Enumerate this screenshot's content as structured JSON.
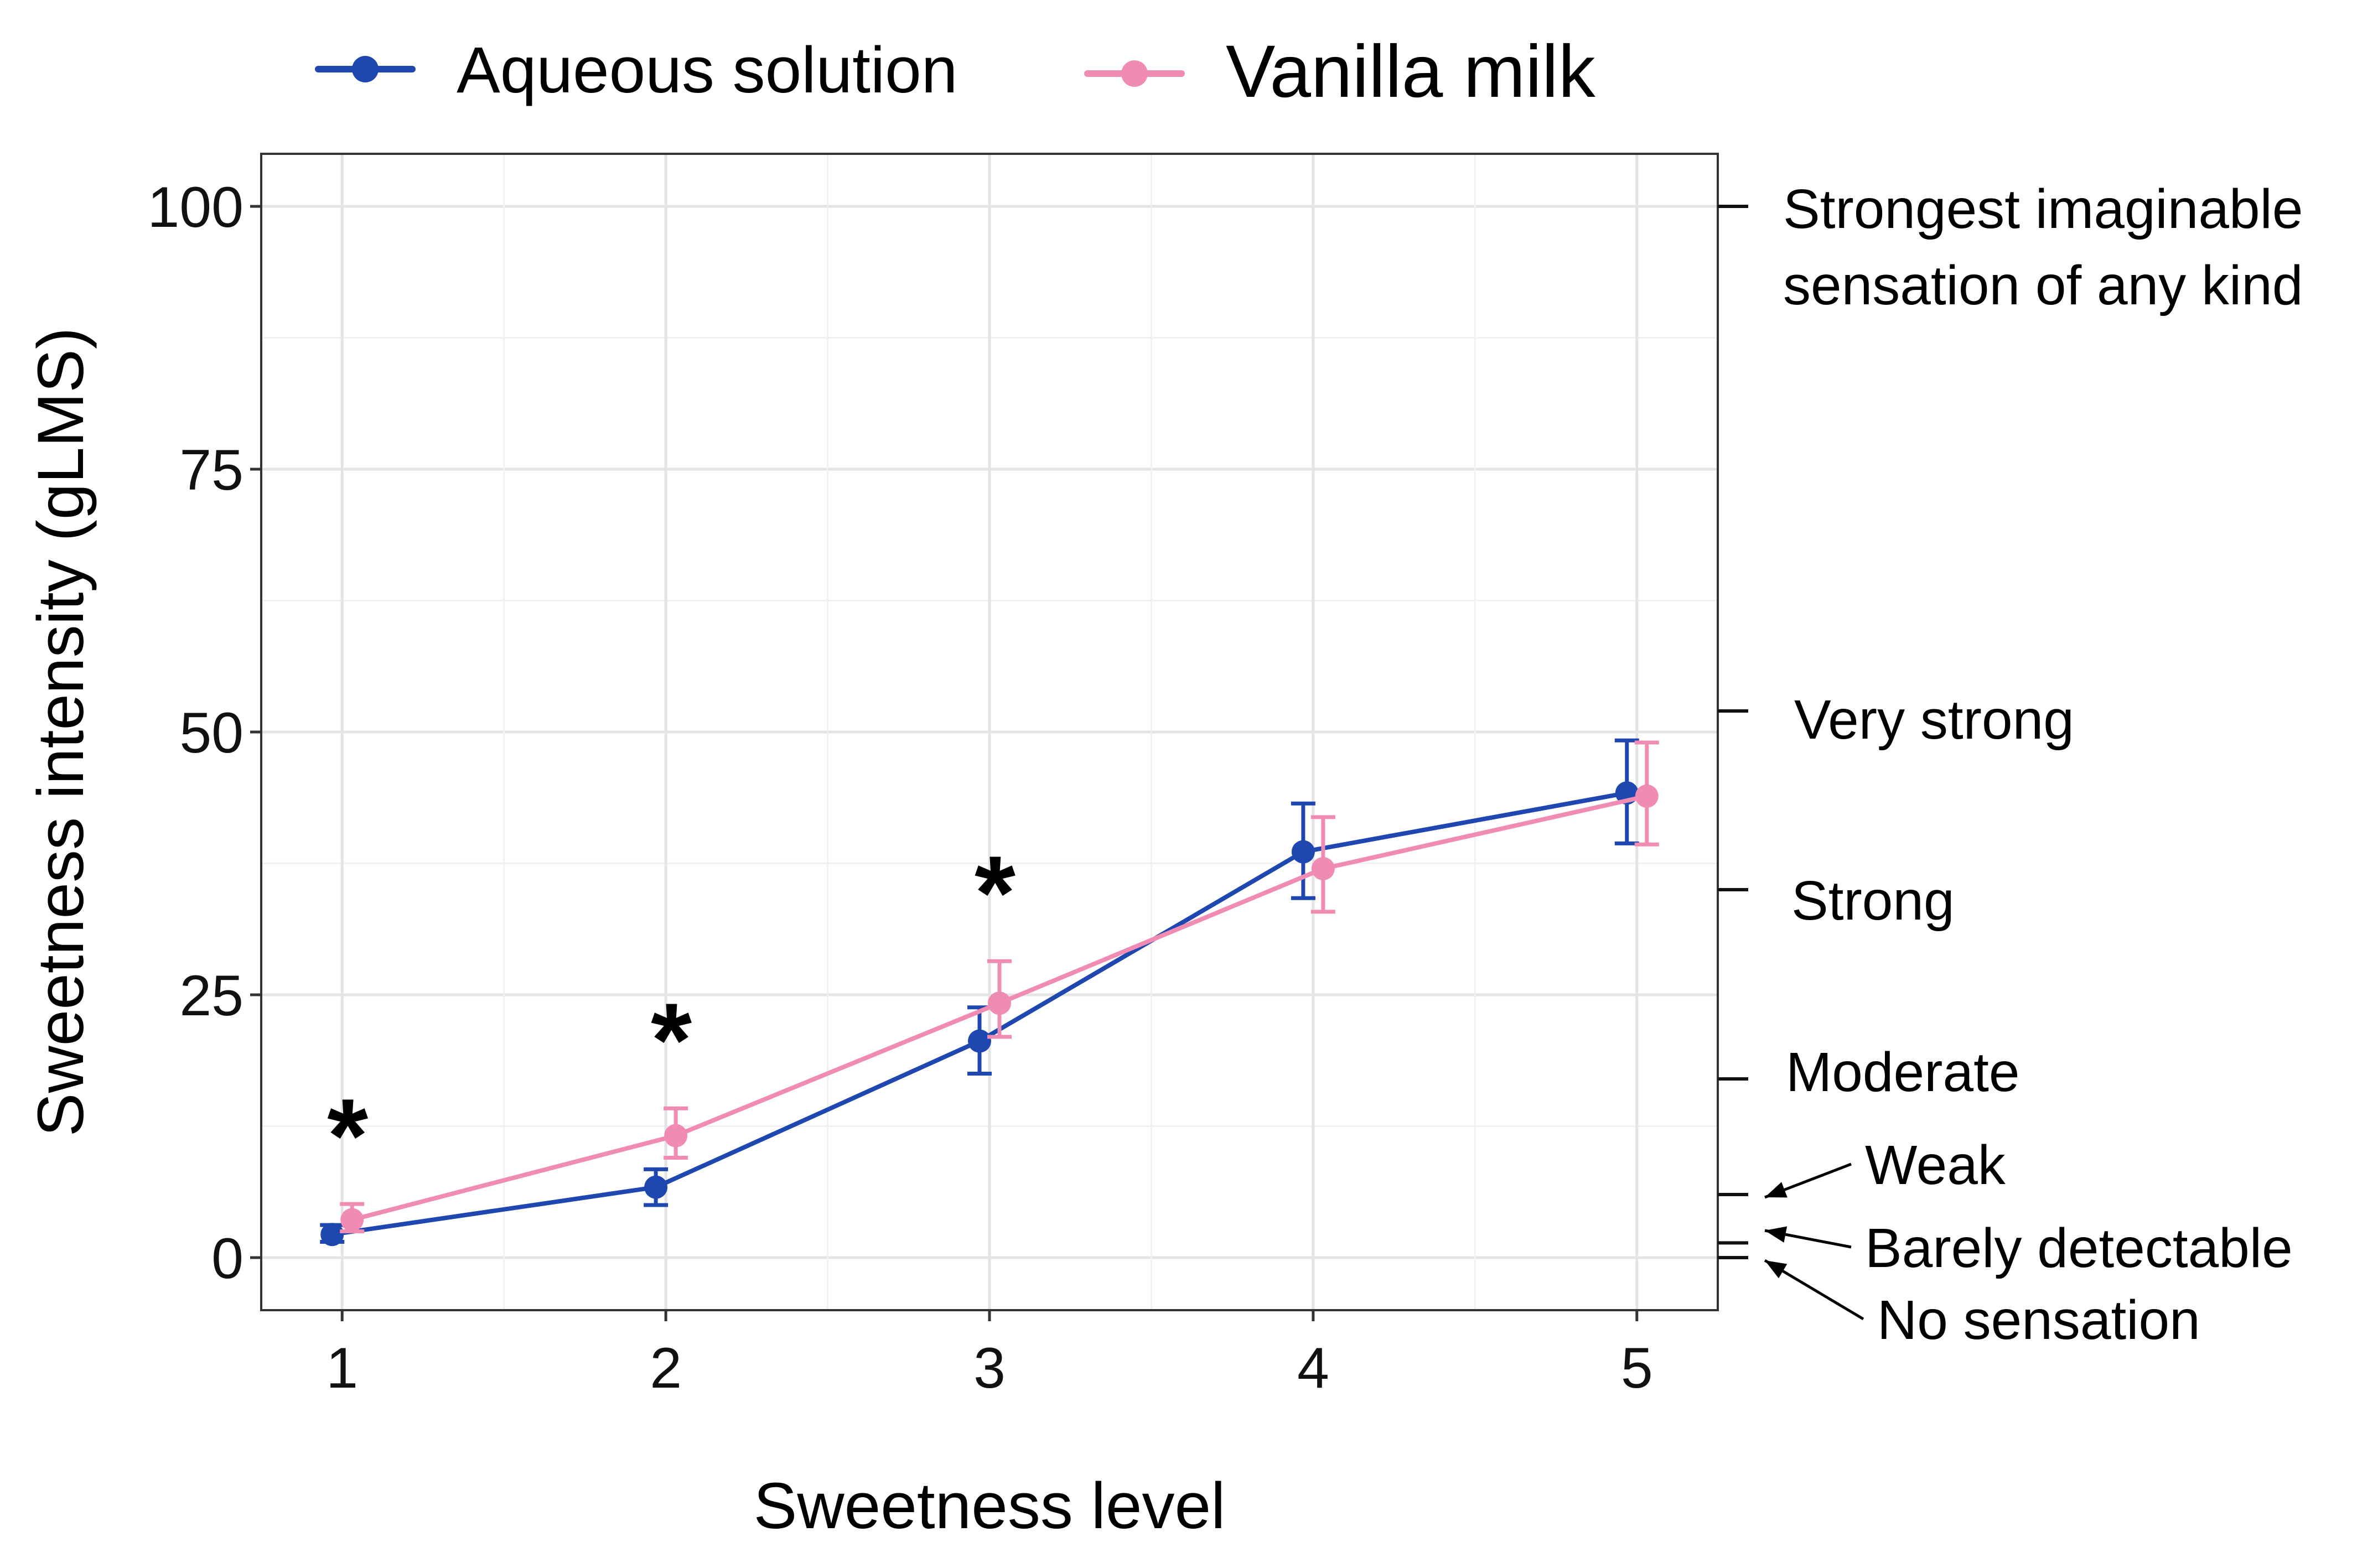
{
  "chart_data": {
    "type": "line",
    "title": "",
    "xlabel": "Sweetness level",
    "ylabel": "Sweetness intensity (gLMS)",
    "x": [
      1,
      2,
      3,
      4,
      5
    ],
    "x_ticks": [
      "1",
      "2",
      "3",
      "4",
      "5"
    ],
    "xlim": [
      0.75,
      5.25
    ],
    "ylim": [
      -5,
      105
    ],
    "y_ticks": [
      0,
      25,
      50,
      75,
      100
    ],
    "y_tick_labels": [
      "0",
      "25",
      "50",
      "75",
      "100"
    ],
    "grid": true,
    "legend_position": "top",
    "series": [
      {
        "name": "Aqueous solution",
        "color": "#1f47b0",
        "values": [
          2.2,
          6.7,
          20.6,
          38.6,
          44.2
        ],
        "err_low": [
          1.5,
          5.0,
          17.5,
          34.2,
          39.4
        ],
        "err_high": [
          3.1,
          8.4,
          23.8,
          43.2,
          49.2
        ]
      },
      {
        "name": "Vanilla milk",
        "color": "#f08cb4",
        "values": [
          3.6,
          11.6,
          24.2,
          37.0,
          43.9
        ],
        "err_low": [
          2.5,
          9.5,
          21.0,
          32.9,
          39.3
        ],
        "err_high": [
          5.1,
          14.2,
          28.2,
          41.9,
          49.0
        ]
      }
    ],
    "significance": [
      {
        "x": 1,
        "label": "*"
      },
      {
        "x": 2,
        "label": "*"
      },
      {
        "x": 3,
        "label": "*"
      }
    ],
    "secondary_axis": [
      {
        "value": 100,
        "label": "Strongest imaginable\nsensation of any kind",
        "arrow": false
      },
      {
        "value": 52,
        "label": "Very strong",
        "arrow": false
      },
      {
        "value": 35,
        "label": "Strong",
        "arrow": false
      },
      {
        "value": 17,
        "label": "Moderate",
        "arrow": false
      },
      {
        "value": 6,
        "label": "Weak",
        "arrow": true
      },
      {
        "value": 1.4,
        "label": "Barely detectable",
        "arrow": true
      },
      {
        "value": 0,
        "label": "No sensation",
        "arrow": true
      }
    ]
  }
}
